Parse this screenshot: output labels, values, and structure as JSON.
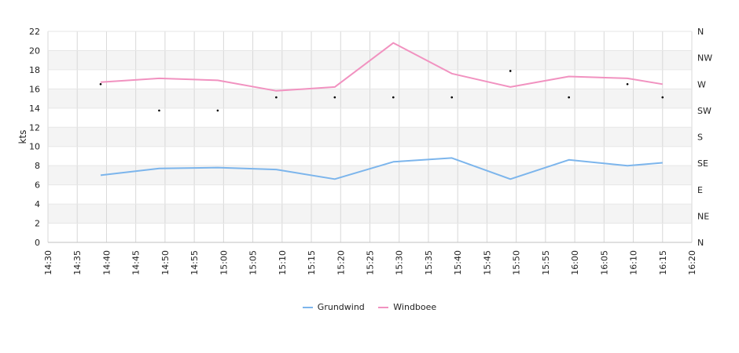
{
  "chart_data": {
    "type": "line",
    "ylabel": "kts",
    "ylim": [
      0,
      22
    ],
    "y_ticks": [
      "0",
      "2",
      "4",
      "6",
      "8",
      "10",
      "12",
      "14",
      "16",
      "18",
      "20",
      "22"
    ],
    "x_ticks": [
      "14:30",
      "14:35",
      "14:40",
      "14:45",
      "14:50",
      "14:55",
      "15:00",
      "15:05",
      "15:10",
      "15:15",
      "15:20",
      "15:25",
      "15:30",
      "15:35",
      "15:40",
      "15:45",
      "15:50",
      "15:55",
      "16:00",
      "16:05",
      "16:10",
      "16:15",
      "16:20"
    ],
    "right_axis": {
      "type": "wind-direction",
      "ticks": [
        "N",
        "NE",
        "E",
        "SE",
        "S",
        "SW",
        "W",
        "NW",
        "N"
      ],
      "range_degrees": [
        0,
        360
      ]
    },
    "x": [
      "14:39",
      "14:49",
      "14:59",
      "15:09",
      "15:19",
      "15:29",
      "15:39",
      "15:49",
      "15:59",
      "16:09",
      "16:15"
    ],
    "series": [
      {
        "name": "Grundwind",
        "color": "#7cb5ec",
        "values": [
          7.0,
          7.7,
          7.8,
          7.6,
          6.6,
          8.4,
          8.8,
          6.6,
          8.6,
          8.0,
          8.3
        ]
      },
      {
        "name": "Windboee",
        "color": "#f192c0",
        "values": [
          16.7,
          17.1,
          16.9,
          15.8,
          16.2,
          20.8,
          17.6,
          16.2,
          17.3,
          17.1,
          16.5
        ]
      }
    ],
    "direction_points": {
      "color": "#000000",
      "x": [
        "14:39",
        "14:49",
        "14:59",
        "15:09",
        "15:19",
        "15:29",
        "15:39",
        "15:49",
        "15:59",
        "16:09",
        "16:15"
      ],
      "degrees": [
        270,
        225,
        225,
        247.5,
        247.5,
        247.5,
        247.5,
        292.5,
        247.5,
        270,
        247.5
      ]
    },
    "grid": true,
    "legend": "bottom-center"
  }
}
